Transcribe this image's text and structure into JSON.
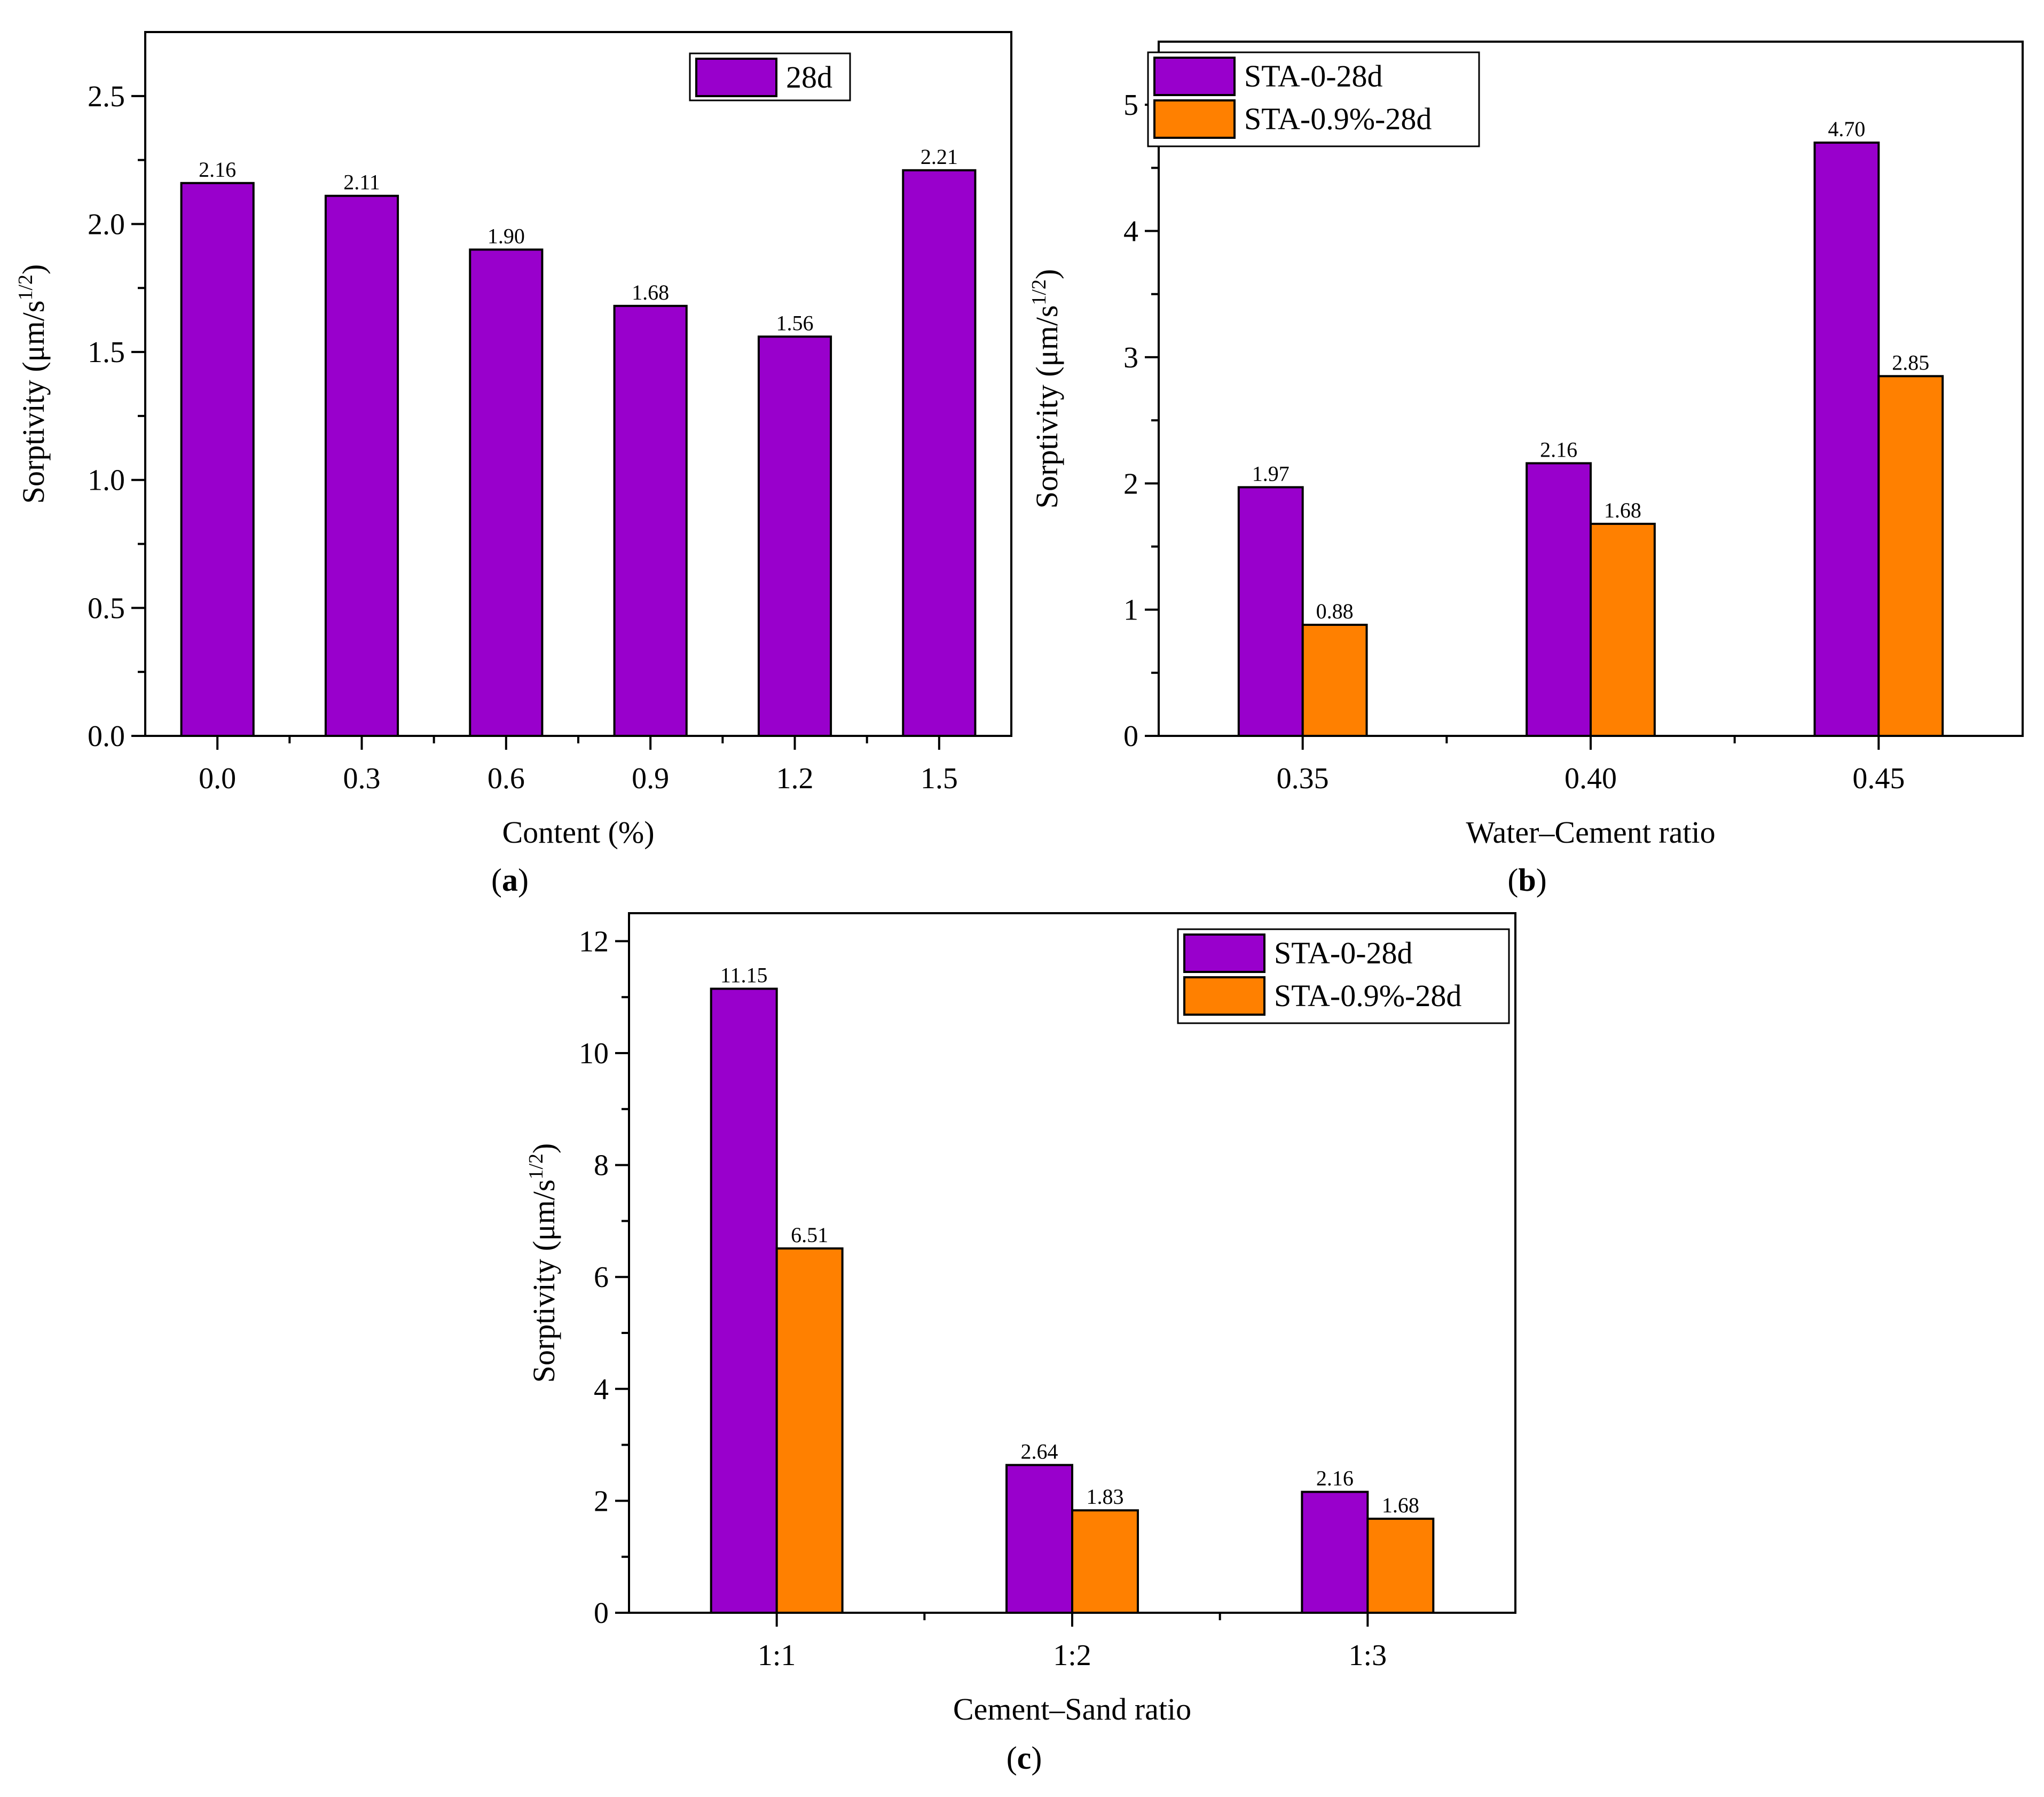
{
  "colors": {
    "series_primary": "#9900CC",
    "series_secondary": "#FF8000"
  },
  "chart_data": [
    {
      "id": "a",
      "type": "bar",
      "caption_letter": "a",
      "xlabel": "Content (%)",
      "ylabel_main": "Sorptivity (μm/s",
      "ylabel_sup": "1/2",
      "ylabel_close": ")",
      "ylim": [
        0,
        2.75
      ],
      "yticks": [
        "0.0",
        "0.5",
        "1.0",
        "1.5",
        "2.0",
        "2.5"
      ],
      "categories": [
        "0.0",
        "0.3",
        "0.6",
        "0.9",
        "1.2",
        "1.5"
      ],
      "legend_position": "top-right",
      "grid": false,
      "series": [
        {
          "name": "28d",
          "color": "#9900CC",
          "values": [
            2.16,
            2.11,
            1.9,
            1.68,
            1.56,
            2.21
          ],
          "labels": [
            "2.16",
            "2.11",
            "1.90",
            "1.68",
            "1.56",
            "2.21"
          ]
        }
      ]
    },
    {
      "id": "b",
      "type": "bar",
      "caption_letter": "b",
      "xlabel": "Water–Cement ratio",
      "ylabel_main": "Sorptivity (μm/s",
      "ylabel_sup": "1/2",
      "ylabel_close": ")",
      "ylim": [
        0,
        5.5
      ],
      "yticks": [
        "0",
        "1",
        "2",
        "3",
        "4",
        "5"
      ],
      "categories": [
        "0.35",
        "0.40",
        "0.45"
      ],
      "legend_position": "top-left",
      "grid": false,
      "series": [
        {
          "name": "STA-0-28d",
          "color": "#9900CC",
          "values": [
            1.97,
            2.16,
            4.7
          ],
          "labels": [
            "1.97",
            "2.16",
            "4.70"
          ]
        },
        {
          "name": "STA-0.9%-28d",
          "color": "#FF8000",
          "values": [
            0.88,
            1.68,
            2.85
          ],
          "labels": [
            "0.88",
            "1.68",
            "2.85"
          ]
        }
      ]
    },
    {
      "id": "c",
      "type": "bar",
      "caption_letter": "c",
      "xlabel": "Cement–Sand ratio",
      "ylabel_main": "Sorptivity (μm/s",
      "ylabel_sup": "1/2",
      "ylabel_close": ")",
      "ylim": [
        0,
        12.5
      ],
      "yticks": [
        "0",
        "2",
        "4",
        "6",
        "8",
        "10",
        "12"
      ],
      "categories": [
        "1:1",
        "1:2",
        "1:3"
      ],
      "legend_position": "top-right",
      "grid": false,
      "series": [
        {
          "name": "STA-0-28d",
          "color": "#9900CC",
          "values": [
            11.15,
            2.64,
            2.16
          ],
          "labels": [
            "11.15",
            "2.64",
            "2.16"
          ]
        },
        {
          "name": "STA-0.9%-28d",
          "color": "#FF8000",
          "values": [
            6.51,
            1.83,
            1.68
          ],
          "labels": [
            "6.51",
            "1.83",
            "1.68"
          ]
        }
      ]
    }
  ]
}
